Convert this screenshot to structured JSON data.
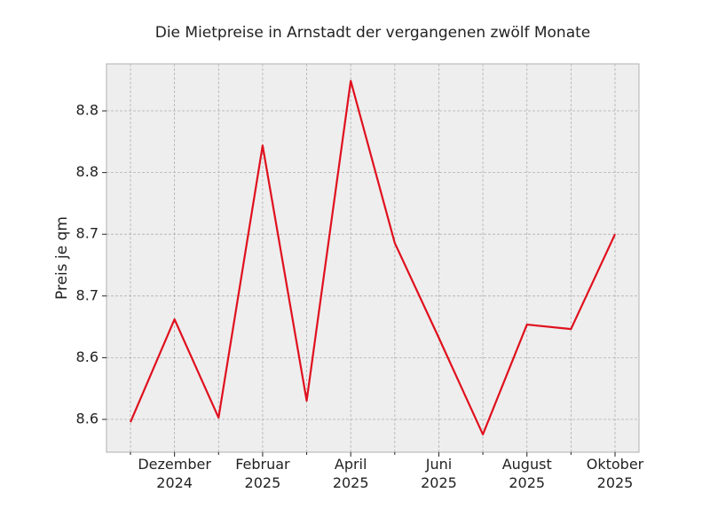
{
  "chart_data": {
    "type": "line",
    "title": "Die Mietpreise in Arnstadt der vergangenen zwölf Monate",
    "y_label": "Preis je qm",
    "categories": [
      null,
      "Dezember\n2024",
      null,
      "Februar\n2025",
      null,
      "April\n2025",
      null,
      "Juni\n2025",
      null,
      "August\n2025",
      null,
      "Oktober\n2025"
    ],
    "series": [
      {
        "name": "Preis je qm",
        "color": "#e0101e",
        "values": [
          8.5728,
          8.6561,
          8.5764,
          8.7969,
          8.5901,
          8.8493,
          8.7179,
          8.6411,
          8.5628,
          8.6518,
          8.6482,
          8.7251
        ]
      }
    ],
    "ylim": [
      8.5484,
      8.8631
    ],
    "yticks": [
      {
        "value": 8.575,
        "label": "8.6"
      },
      {
        "value": 8.625,
        "label": "8.6"
      },
      {
        "value": 8.675,
        "label": "8.7"
      },
      {
        "value": 8.725,
        "label": "8.7"
      },
      {
        "value": 8.775,
        "label": "8.8"
      },
      {
        "value": 8.825,
        "label": "8.8"
      }
    ],
    "grid": true
  }
}
